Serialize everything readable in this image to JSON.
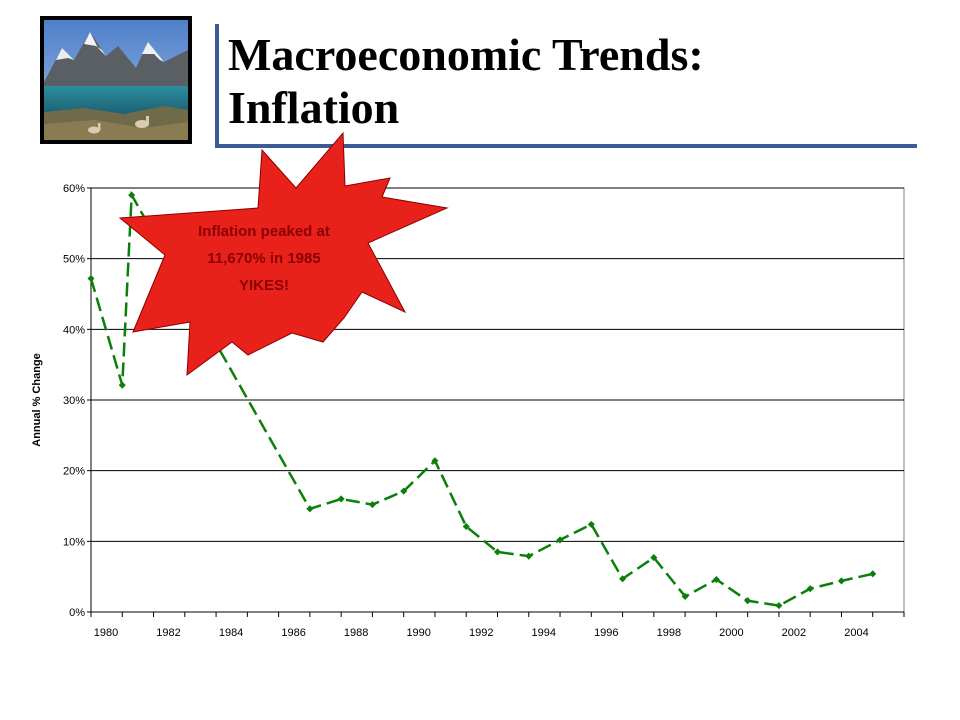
{
  "slide": {
    "title_line1": "Macroeconomic Trends:",
    "title_line2": "Inflation"
  },
  "photo": {
    "icon": "mountain-lake-photo"
  },
  "callout": {
    "line1": "Inflation peaked at",
    "line2": "11,670% in 1985",
    "line3": "YIKES!",
    "fill": "#e8211b",
    "text_color": "#8b0000"
  },
  "chart_data": {
    "type": "line",
    "title": "",
    "xlabel": "",
    "ylabel": "Annual % Change",
    "xlim": [
      1980,
      2006
    ],
    "ylim": [
      0,
      60
    ],
    "y_ticks": [
      0,
      10,
      20,
      30,
      40,
      50,
      60
    ],
    "y_tick_labels": [
      "0%",
      "10%",
      "20%",
      "30%",
      "40%",
      "50%",
      "60%"
    ],
    "x_ticks": [
      1980,
      1982,
      1984,
      1986,
      1988,
      1990,
      1992,
      1994,
      1996,
      1998,
      2000,
      2002,
      2004
    ],
    "x_tick_labels": [
      "1980",
      "1982",
      "1984",
      "1986",
      "1988",
      "1990",
      "1992",
      "1994",
      "1996",
      "1998",
      "2000",
      "2002",
      "2004"
    ],
    "grid": true,
    "line_color": "#0a7f0a",
    "series": [
      {
        "x": [
          1980,
          1981,
          1981.3,
          1987,
          1988,
          1989,
          1990,
          1991,
          1992,
          1993,
          1994,
          1995,
          1996,
          1997,
          1998,
          1999,
          2000,
          2001,
          2002,
          2003,
          2004,
          2005
        ],
        "values": [
          47.2,
          32.1,
          59,
          14.6,
          16,
          15.2,
          17.1,
          21.4,
          12.1,
          8.5,
          7.9,
          10.2,
          12.4,
          4.7,
          7.7,
          2.2,
          4.6,
          1.6,
          0.9,
          3.3,
          4.4,
          5.4
        ]
      }
    ],
    "hidden_segment_note": ""
  }
}
